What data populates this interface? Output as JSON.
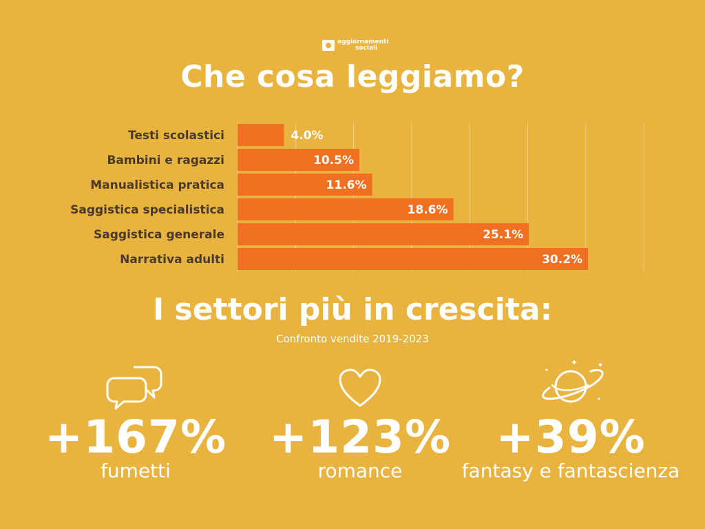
{
  "header": {
    "logo_top": "aggiornamenti",
    "logo_bottom": "sociali",
    "title": "Che cosa leggiamo?"
  },
  "chart_data": {
    "type": "bar",
    "orientation": "horizontal",
    "categories": [
      "Testi scolastici",
      "Bambini e ragazzi",
      "Manualistica pratica",
      "Saggistica specialistica",
      "Saggistica generale",
      "Narrativa adulti"
    ],
    "values": [
      4.0,
      10.5,
      11.6,
      18.6,
      25.1,
      30.2
    ],
    "value_labels": [
      "4.0%",
      "10.5%",
      "11.6%",
      "18.6%",
      "25.1%",
      "30.2%"
    ],
    "xlim": [
      0,
      35
    ],
    "grid": true,
    "bar_color": "#F07022"
  },
  "growth": {
    "title": "I settori più in crescita:",
    "subtitle": "Confronto vendite 2019-2023",
    "items": [
      {
        "value": "+167%",
        "label": "fumetti",
        "icon": "speech-bubbles-icon"
      },
      {
        "value": "+123%",
        "label": "romance",
        "icon": "heart-icon"
      },
      {
        "value": "+39%",
        "label": "fantasy e fantascienza",
        "icon": "planet-icon"
      }
    ]
  },
  "colors": {
    "background": "#E8B33F",
    "bar": "#F07022",
    "text": "#FFFFFF",
    "category_text": "#4A3A2A"
  }
}
